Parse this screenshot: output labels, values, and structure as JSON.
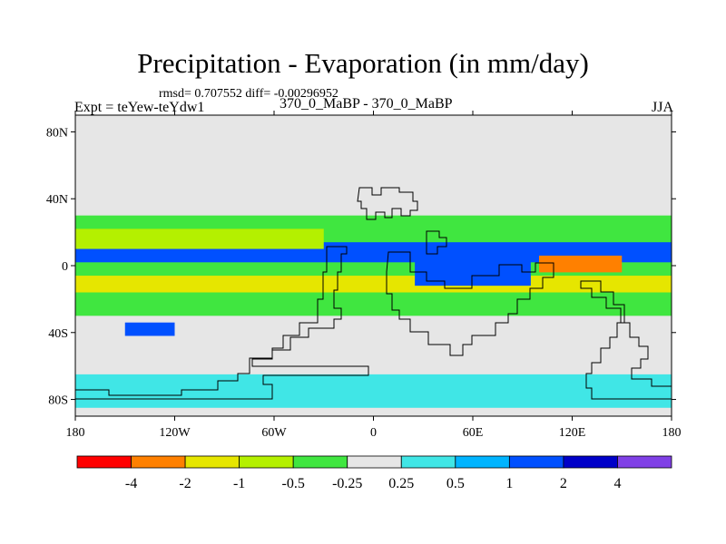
{
  "header": {
    "title": "Precipitation - Evaporation (in mm/day)",
    "stats": "rmsd= 0.707552 diff= -0.00296952",
    "expt": "Expt = teYew-teYdw1",
    "subtitle": "370_0_MaBP - 370_0_MaBP",
    "season": "JJA"
  },
  "chart_data": {
    "type": "heatmap",
    "title": "Precipitation - Evaporation (in mm/day)",
    "xlabel": "",
    "ylabel": "",
    "xlim": [
      -180,
      180
    ],
    "ylim": [
      -90,
      90
    ],
    "x_ticks": [
      {
        "value": -180,
        "label": "180"
      },
      {
        "value": -120,
        "label": "120W"
      },
      {
        "value": -60,
        "label": "60W"
      },
      {
        "value": 0,
        "label": "0"
      },
      {
        "value": 60,
        "label": "60E"
      },
      {
        "value": 120,
        "label": "120E"
      },
      {
        "value": 180,
        "label": "180"
      }
    ],
    "y_ticks": [
      {
        "value": 80,
        "label": "80N"
      },
      {
        "value": 40,
        "label": "40N"
      },
      {
        "value": 0,
        "label": "0"
      },
      {
        "value": -40,
        "label": "40S"
      },
      {
        "value": -80,
        "label": "80S"
      }
    ],
    "colorbar": {
      "levels": [
        "-4",
        "-2",
        "-1",
        "-0.5",
        "-0.25",
        "0.25",
        "0.5",
        "1",
        "2",
        "4"
      ],
      "colors": [
        "#ff0000",
        "#ff8000",
        "#e6e600",
        "#b4f000",
        "#40e640",
        "#e6e6e6",
        "#40e6e6",
        "#00b4ff",
        "#0050ff",
        "#0000c8",
        "#8040e6"
      ]
    },
    "fields": [
      {
        "lon": [
          -180,
          180
        ],
        "lat": [
          -30,
          30
        ],
        "value": -0.4
      },
      {
        "lon": [
          -180,
          180
        ],
        "lat": [
          2,
          14
        ],
        "value": 1.5
      },
      {
        "lon": [
          -180,
          180
        ],
        "lat": [
          -16,
          -6
        ],
        "value": -1.5
      },
      {
        "lon": [
          -180,
          -30
        ],
        "lat": [
          10,
          22
        ],
        "value": -0.8
      },
      {
        "lon": [
          100,
          150
        ],
        "lat": [
          -4,
          6
        ],
        "value": -3
      },
      {
        "lon": [
          25,
          95
        ],
        "lat": [
          -12,
          6
        ],
        "value": 1.5
      },
      {
        "lon": [
          -150,
          -120
        ],
        "lat": [
          -42,
          -34
        ],
        "value": 1.5
      },
      {
        "lon": [
          -180,
          180
        ],
        "lat": [
          -85,
          -65
        ],
        "value": 0.4
      }
    ]
  },
  "outline_label": "continent outline"
}
